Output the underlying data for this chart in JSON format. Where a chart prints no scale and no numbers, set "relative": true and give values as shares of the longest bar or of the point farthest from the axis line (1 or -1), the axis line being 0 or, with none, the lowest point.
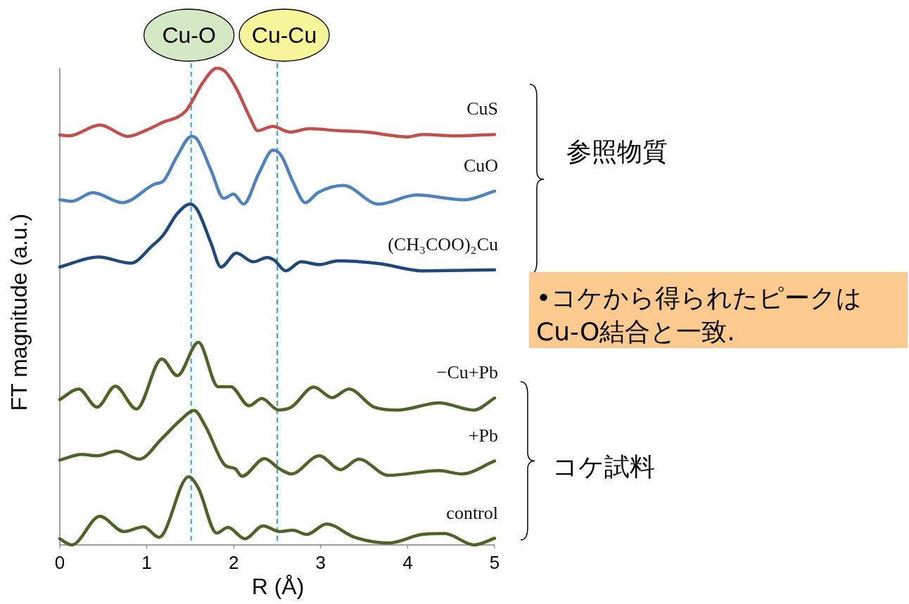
{
  "chart_data": {
    "type": "line",
    "relative": true,
    "xlabel": "R  (Å)",
    "ylabel": "FT magnitude  (a.u.)",
    "xlim": [
      0,
      5
    ],
    "xticks": [
      0,
      1,
      2,
      3,
      4,
      5
    ],
    "series": [
      {
        "name": "CuS",
        "color": "#c0504d",
        "x": [
          0,
          0.105,
          0.461,
          0.785,
          0.995,
          1.206,
          1.351,
          1.448,
          1.513,
          1.642,
          1.804,
          1.901,
          2.031,
          2.193,
          2.273,
          2.451,
          2.646,
          2.872,
          3.196,
          3.519,
          4.005,
          4.167,
          4.555,
          5.0
        ],
        "values": [
          0.86,
          0.858,
          0.881,
          0.857,
          0.87,
          0.888,
          0.897,
          0.91,
          0.928,
          0.969,
          1.0,
          0.993,
          0.957,
          0.894,
          0.869,
          0.878,
          0.866,
          0.873,
          0.869,
          0.866,
          0.856,
          0.861,
          0.858,
          0.861
        ]
      },
      {
        "name": "CuO",
        "color": "#4f81bd",
        "x": [
          0,
          0.138,
          0.38,
          0.72,
          1.092,
          1.189,
          1.351,
          1.513,
          1.578,
          1.739,
          1.885,
          1.998,
          2.112,
          2.29,
          2.451,
          2.549,
          2.678,
          2.824,
          2.969,
          3.261,
          3.665,
          4.102,
          4.652,
          5.0
        ],
        "values": [
          0.724,
          0.721,
          0.739,
          0.718,
          0.757,
          0.763,
          0.816,
          0.857,
          0.851,
          0.786,
          0.727,
          0.736,
          0.715,
          0.78,
          0.828,
          0.816,
          0.763,
          0.718,
          0.739,
          0.754,
          0.715,
          0.734,
          0.724,
          0.742
        ]
      },
      {
        "name": "(CH₃COO)₂Cu",
        "color": "#1f497d",
        "x": [
          0,
          0.445,
          0.817,
          1.06,
          1.189,
          1.351,
          1.497,
          1.578,
          1.739,
          1.853,
          2.031,
          2.225,
          2.387,
          2.468,
          2.597,
          2.775,
          2.985,
          3.196,
          3.681,
          4.167,
          5.0
        ],
        "values": [
          0.583,
          0.604,
          0.591,
          0.627,
          0.65,
          0.695,
          0.715,
          0.704,
          0.633,
          0.583,
          0.612,
          0.594,
          0.603,
          0.597,
          0.575,
          0.594,
          0.588,
          0.596,
          0.59,
          0.575,
          0.577
        ]
      },
      {
        "name": "−Cu+Pb",
        "color": "#4f6228",
        "x": [
          0,
          0.218,
          0.429,
          0.639,
          0.882,
          1.173,
          1.351,
          1.594,
          1.82,
          1.966,
          2.176,
          2.322,
          2.516,
          2.662,
          2.921,
          3.131,
          3.325,
          3.617,
          3.892,
          4.361,
          4.765,
          5.0
        ],
        "values": [
          0.305,
          0.327,
          0.289,
          0.333,
          0.285,
          0.39,
          0.355,
          0.425,
          0.332,
          0.332,
          0.292,
          0.307,
          0.283,
          0.289,
          0.331,
          0.309,
          0.327,
          0.289,
          0.283,
          0.298,
          0.283,
          0.308
        ]
      },
      {
        "name": "+Pb",
        "color": "#4f6228",
        "x": [
          0,
          0.251,
          0.429,
          0.655,
          0.914,
          1.173,
          1.383,
          1.545,
          1.675,
          1.901,
          2.015,
          2.095,
          2.354,
          2.516,
          2.662,
          2.985,
          3.228,
          3.439,
          3.778,
          4.361,
          4.62,
          5.0
        ],
        "values": [
          0.178,
          0.19,
          0.187,
          0.197,
          0.18,
          0.223,
          0.261,
          0.282,
          0.249,
          0.167,
          0.16,
          0.144,
          0.181,
          0.161,
          0.149,
          0.187,
          0.158,
          0.18,
          0.146,
          0.156,
          0.149,
          0.176
        ]
      },
      {
        "name": "control",
        "color": "#4f6228",
        "x": [
          0,
          0.138,
          0.461,
          0.736,
          0.963,
          1.141,
          1.481,
          1.594,
          1.804,
          1.934,
          2.128,
          2.338,
          2.532,
          2.678,
          2.84,
          3.066,
          3.39,
          3.778,
          4.167,
          4.426,
          4.765,
          5.0
        ],
        "values": [
          0.013,
          0.0,
          0.06,
          0.028,
          0.038,
          0.016,
          0.143,
          0.119,
          0.025,
          0.037,
          0.013,
          0.04,
          0.028,
          0.031,
          0.022,
          0.044,
          0.016,
          0.004,
          0.022,
          0.024,
          0.0,
          0.014
        ]
      }
    ],
    "ref_lines": [
      {
        "axis": "x",
        "value": 1.51,
        "label": "Cu-O",
        "color": "#29abe2",
        "line_style": "dashed"
      },
      {
        "axis": "x",
        "value": 2.5,
        "label": "Cu-Cu",
        "color": "#29abe2",
        "line_style": "dashed"
      }
    ],
    "annotations": [
      "参照物質",
      "コケ試料",
      "•コケから得られたピークは\nCu-O結合と一致."
    ]
  }
}
